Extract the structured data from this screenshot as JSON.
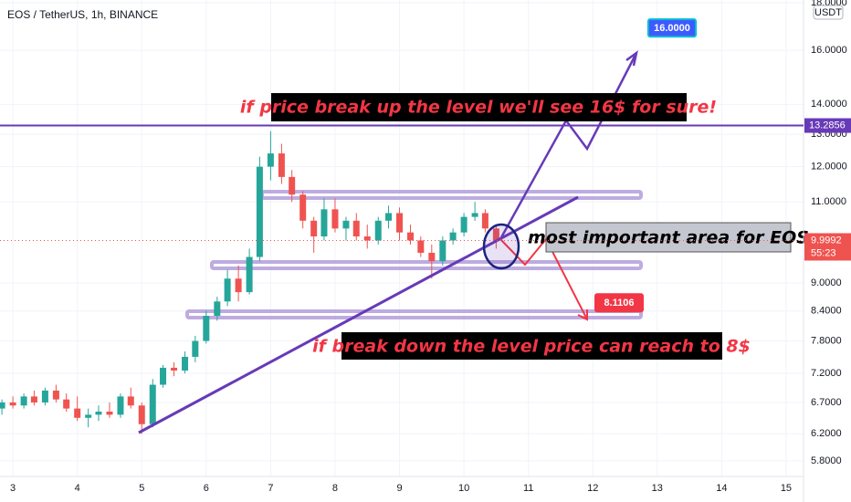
{
  "chart_data": {
    "type": "candlestick",
    "title": "EOS / TetherUS, 1h, BINANCE",
    "currency": "USDT",
    "up_color": "#26a69a",
    "down_color": "#ef5350",
    "log_scale": true,
    "grid": true,
    "x": [
      2.83,
      3.0,
      3.17,
      3.33,
      3.5,
      3.67,
      3.83,
      4.0,
      4.17,
      4.33,
      4.5,
      4.67,
      4.83,
      5.0,
      5.17,
      5.33,
      5.5,
      5.67,
      5.83,
      6.0,
      6.17,
      6.33,
      6.5,
      6.67,
      6.83,
      7.0,
      7.17,
      7.33,
      7.5,
      7.67,
      7.83,
      8.0,
      8.17,
      8.33,
      8.5,
      8.67,
      8.83,
      9.0,
      9.17,
      9.33,
      9.5,
      9.67,
      9.83,
      10.0,
      10.17,
      10.33,
      10.5
    ],
    "open": [
      6.6,
      6.7,
      6.65,
      6.8,
      6.7,
      6.9,
      6.75,
      6.6,
      6.45,
      6.5,
      6.55,
      6.5,
      6.8,
      6.65,
      6.35,
      7.0,
      7.3,
      7.25,
      7.5,
      7.8,
      8.3,
      8.6,
      9.1,
      8.8,
      9.6,
      12.0,
      12.4,
      11.7,
      11.2,
      10.5,
      10.1,
      10.8,
      10.3,
      10.5,
      10.1,
      10.0,
      10.5,
      10.7,
      10.2,
      10.0,
      9.7,
      9.5,
      10.0,
      10.2,
      10.6,
      10.7,
      10.3
    ],
    "high": [
      6.75,
      6.8,
      6.85,
      6.9,
      6.95,
      7.0,
      6.85,
      6.8,
      6.6,
      6.65,
      6.7,
      6.85,
      6.95,
      6.7,
      7.1,
      7.35,
      7.4,
      7.6,
      7.9,
      8.4,
      8.7,
      9.3,
      9.4,
      9.8,
      12.3,
      13.1,
      12.7,
      11.9,
      11.3,
      10.6,
      11.1,
      11.1,
      10.6,
      10.7,
      10.4,
      10.6,
      10.9,
      10.85,
      10.4,
      10.1,
      9.9,
      10.1,
      10.3,
      10.7,
      11.0,
      10.8,
      10.4
    ],
    "low": [
      6.5,
      6.6,
      6.6,
      6.65,
      6.65,
      6.7,
      6.55,
      6.4,
      6.3,
      6.4,
      6.45,
      6.45,
      6.6,
      6.2,
      6.3,
      6.95,
      7.15,
      7.2,
      7.4,
      7.75,
      8.2,
      8.5,
      8.6,
      8.75,
      9.5,
      11.6,
      11.5,
      11.0,
      10.3,
      9.7,
      10.0,
      10.2,
      10.0,
      10.0,
      9.8,
      9.9,
      10.3,
      10.0,
      9.9,
      9.6,
      9.1,
      9.4,
      9.9,
      10.1,
      10.5,
      10.2,
      9.8
    ],
    "close": [
      6.7,
      6.65,
      6.8,
      6.7,
      6.9,
      6.75,
      6.6,
      6.45,
      6.5,
      6.55,
      6.5,
      6.8,
      6.65,
      6.35,
      7.0,
      7.3,
      7.25,
      7.5,
      7.8,
      8.3,
      8.6,
      9.1,
      8.8,
      9.6,
      12.0,
      12.4,
      11.7,
      11.2,
      10.5,
      10.1,
      10.8,
      10.3,
      10.5,
      10.1,
      10.0,
      10.5,
      10.7,
      10.2,
      10.0,
      9.7,
      9.5,
      10.0,
      10.2,
      10.6,
      10.7,
      10.3,
      9.9992
    ],
    "xlim": [
      2.8,
      15.27
    ],
    "ylim": [
      5.58,
      18.12
    ],
    "xticks": [
      3,
      4,
      5,
      6,
      7,
      8,
      9,
      10,
      11,
      12,
      13,
      14,
      15
    ],
    "yticks": [
      {
        "value": 18,
        "label": "18.0000"
      },
      {
        "value": 16,
        "label": "16.0000"
      },
      {
        "value": 14,
        "label": "14.0000"
      },
      {
        "value": 13,
        "label": "13.0000"
      },
      {
        "value": 12,
        "label": "12.0000"
      },
      {
        "value": 11,
        "label": "11.0000"
      },
      {
        "value": 9,
        "label": "9.0000"
      },
      {
        "value": 8.4,
        "label": "8.4000"
      },
      {
        "value": 7.8,
        "label": "7.8000"
      },
      {
        "value": 7.2,
        "label": "7.2000"
      },
      {
        "value": 6.7,
        "label": "6.7000"
      },
      {
        "value": 6.2,
        "label": "6.2000"
      },
      {
        "value": 5.8,
        "label": "5.8000"
      }
    ],
    "level_line": 13.2856,
    "countdown": "55:23",
    "targets": [
      {
        "value": 16,
        "label": "16.0000"
      },
      {
        "value": 8.1106,
        "label": "8.1106"
      }
    ],
    "notes": [
      "if price break up the level we'll see 16$ for sure!",
      "most important area for EOS",
      "if break down the level price can reach to 8$"
    ]
  }
}
